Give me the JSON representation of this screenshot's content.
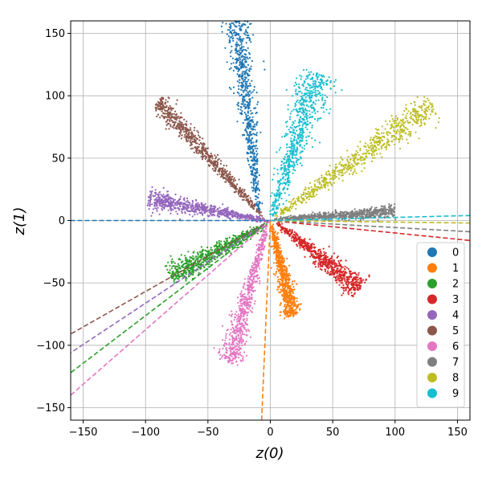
{
  "chart_data": {
    "type": "scatter",
    "xlabel": "z(0)",
    "ylabel": "z(1)",
    "xlim": [
      -160,
      160
    ],
    "ylim": [
      -160,
      160
    ],
    "xticks": [
      -150,
      -100,
      -50,
      0,
      50,
      100,
      150
    ],
    "yticks": [
      -150,
      -100,
      -50,
      0,
      50,
      100,
      150
    ],
    "grid": true,
    "legend_position": "lower-right",
    "series": [
      {
        "name": "0",
        "color": "#1f77b4",
        "cluster_start": [
          -9,
          5
        ],
        "cluster_end": [
          -27,
          160
        ],
        "spread": 2.0,
        "line_end": [
          -160,
          0
        ]
      },
      {
        "name": "1",
        "color": "#ff7f0e",
        "cluster_start": [
          1,
          -3
        ],
        "cluster_end": [
          18,
          -77
        ],
        "spread": 1.4,
        "line_end": [
          -7,
          -160
        ]
      },
      {
        "name": "2",
        "color": "#2ca02c",
        "cluster_start": [
          -3,
          -3
        ],
        "cluster_end": [
          -80,
          -45
        ],
        "spread": 1.8,
        "line_end": [
          -160,
          -122
        ]
      },
      {
        "name": "3",
        "color": "#d62728",
        "cluster_start": [
          4,
          -1
        ],
        "cluster_end": [
          72,
          -55
        ],
        "spread": 1.8,
        "line_end": [
          160,
          -16
        ]
      },
      {
        "name": "4",
        "color": "#9467bd",
        "cluster_start": [
          -2,
          0
        ],
        "cluster_end": [
          -98,
          17
        ],
        "spread": 1.5,
        "line_end": [
          -160,
          -106
        ]
      },
      {
        "name": "5",
        "color": "#8c564b",
        "cluster_start": [
          -5,
          2
        ],
        "cluster_end": [
          -90,
          96
        ],
        "spread": 1.5,
        "line_end": [
          -160,
          -91
        ]
      },
      {
        "name": "6",
        "color": "#e377c2",
        "cluster_start": [
          -3,
          -4
        ],
        "cluster_end": [
          -33,
          -114
        ],
        "spread": 1.8,
        "line_end": [
          -160,
          -140
        ]
      },
      {
        "name": "7",
        "color": "#7f7f7f",
        "cluster_start": [
          3,
          1
        ],
        "cluster_end": [
          100,
          7
        ],
        "spread": 1.0,
        "line_end": [
          160,
          -9
        ]
      },
      {
        "name": "8",
        "color": "#bcbd22",
        "cluster_start": [
          3,
          2
        ],
        "cluster_end": [
          130,
          93
        ],
        "spread": 2.2,
        "line_end": [
          160,
          -2
        ]
      },
      {
        "name": "9",
        "color": "#17becf",
        "cluster_start": [
          1,
          3
        ],
        "cluster_end": [
          38,
          118
        ],
        "spread": 3.0,
        "line_end": [
          160,
          4
        ]
      }
    ]
  }
}
